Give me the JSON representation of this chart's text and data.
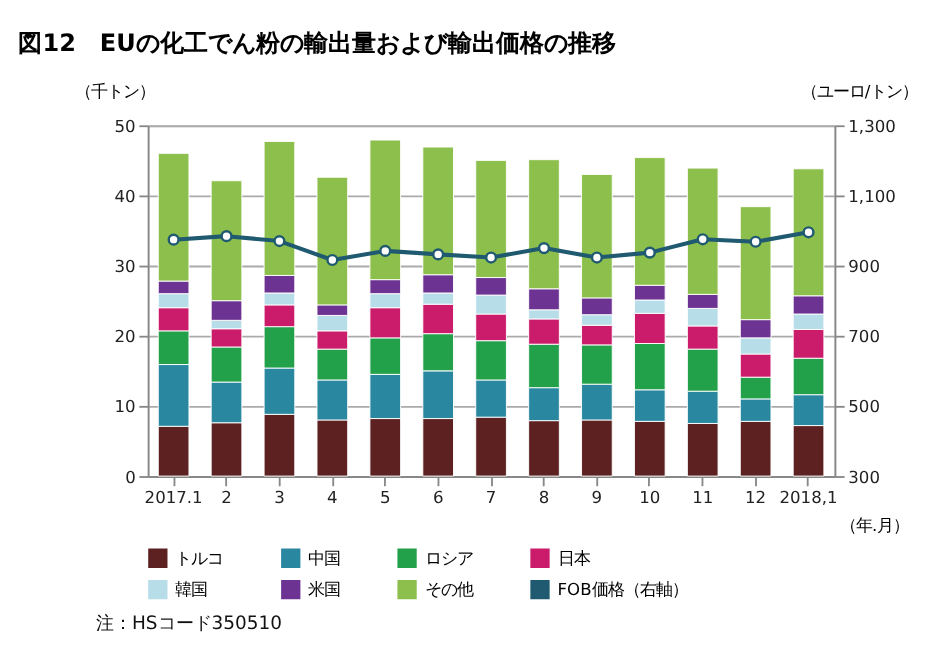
{
  "chart_data": {
    "type": "bar",
    "title": "図12　EUの化工でん粉の輸出量および輸出価格の推移",
    "xlabel": "（年.月）",
    "ylabel": "（千トン）",
    "y2label": "（ユーロ/トン）",
    "categories": [
      "2017.1",
      "2",
      "3",
      "4",
      "5",
      "6",
      "7",
      "8",
      "9",
      "10",
      "11",
      "12",
      "2018,1"
    ],
    "stacked": true,
    "series": [
      {
        "name": "トルコ",
        "color": "#5c2120",
        "values": [
          7.1,
          7.6,
          8.8,
          8.0,
          8.2,
          8.2,
          8.4,
          7.9,
          8.0,
          7.8,
          7.5,
          7.8,
          7.2
        ]
      },
      {
        "name": "中国",
        "color": "#2a87a0",
        "values": [
          8.8,
          5.8,
          6.6,
          5.7,
          6.3,
          6.8,
          5.3,
          4.7,
          5.1,
          4.5,
          4.6,
          3.2,
          4.4
        ]
      },
      {
        "name": "ロシア",
        "color": "#22a04a",
        "values": [
          4.8,
          5.0,
          5.9,
          4.4,
          5.2,
          5.3,
          5.6,
          6.2,
          5.6,
          6.6,
          6.0,
          3.1,
          5.2
        ]
      },
      {
        "name": "日本",
        "color": "#cb1b6b",
        "values": [
          3.3,
          2.6,
          3.1,
          2.6,
          4.3,
          4.2,
          3.8,
          3.6,
          2.8,
          4.3,
          3.3,
          3.3,
          4.1
        ]
      },
      {
        "name": "韓国",
        "color": "#b7dde8",
        "values": [
          2.0,
          1.2,
          1.7,
          2.2,
          2.0,
          1.6,
          2.7,
          1.3,
          1.5,
          1.9,
          2.5,
          2.3,
          2.2
        ]
      },
      {
        "name": "米国",
        "color": "#6d3393",
        "values": [
          1.8,
          2.8,
          2.5,
          1.5,
          2.0,
          2.6,
          2.5,
          3.0,
          2.4,
          2.1,
          2.0,
          2.6,
          2.6
        ]
      },
      {
        "name": "その他",
        "color": "#8dbf4c",
        "values": [
          18.2,
          17.1,
          19.1,
          18.2,
          19.9,
          18.2,
          16.7,
          18.4,
          17.6,
          18.2,
          18.0,
          16.1,
          18.1
        ]
      },
      {
        "name": "FOB価格（右軸）",
        "color": "#1f5a70",
        "type": "line",
        "axis": "y2",
        "marker": "circle",
        "values": [
          974,
          984,
          970,
          916,
          942,
          932,
          923,
          950,
          923,
          937,
          975,
          968,
          995
        ]
      }
    ],
    "ylim": [
      0,
      50
    ],
    "yticks": [
      0,
      10,
      20,
      30,
      40,
      50
    ],
    "y2lim": [
      300,
      1300
    ],
    "y2ticks": [
      300,
      500,
      700,
      900,
      {
        "value": 1100,
        "label": "1,100"
      },
      {
        "value": 1300,
        "label": "1,300"
      }
    ],
    "grid": "y",
    "legend": "bottom",
    "annotations": [
      "注：HSコード350510"
    ]
  }
}
